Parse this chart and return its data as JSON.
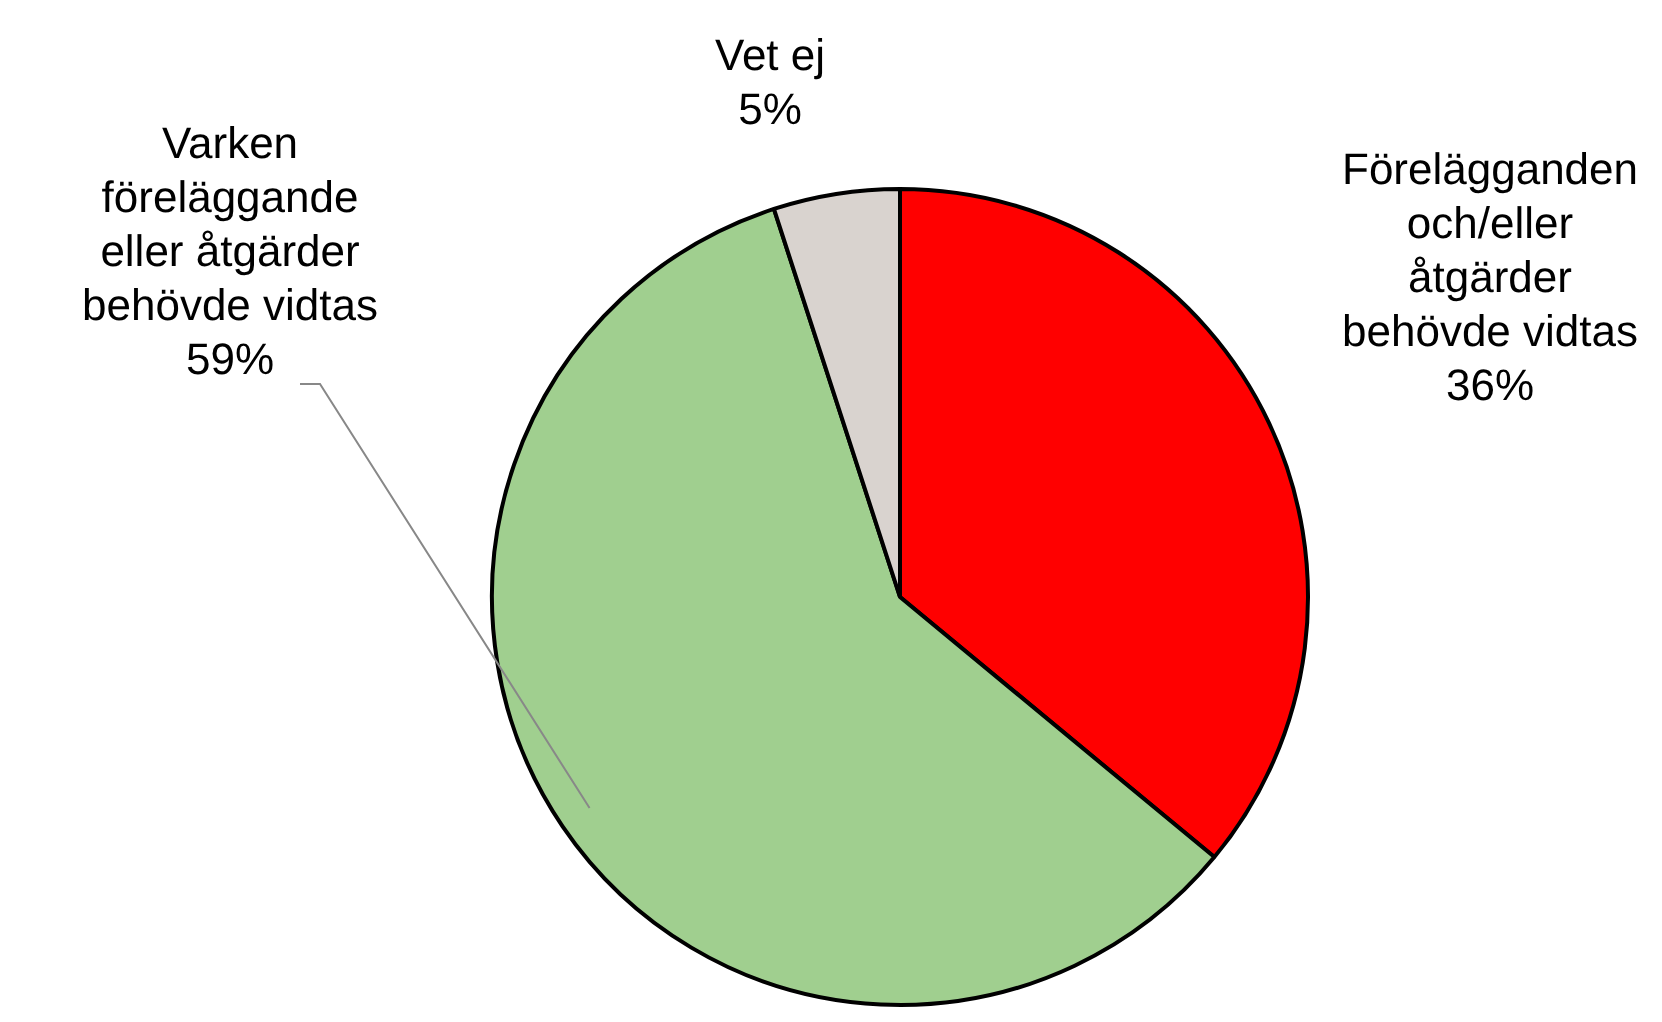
{
  "chart_data": {
    "type": "pie",
    "categories": [
      "Förelägganden och/eller åtgärder behövde vidtas",
      "Varken föreläggande eller åtgärder behövde vidtas",
      "Vet ej"
    ],
    "values": [
      36,
      59,
      5
    ],
    "value_labels": [
      "36%",
      "59%",
      "5%"
    ],
    "colors": [
      "#ff0000",
      "#a0cf8f",
      "#d9d3cf"
    ],
    "legend": false
  }
}
